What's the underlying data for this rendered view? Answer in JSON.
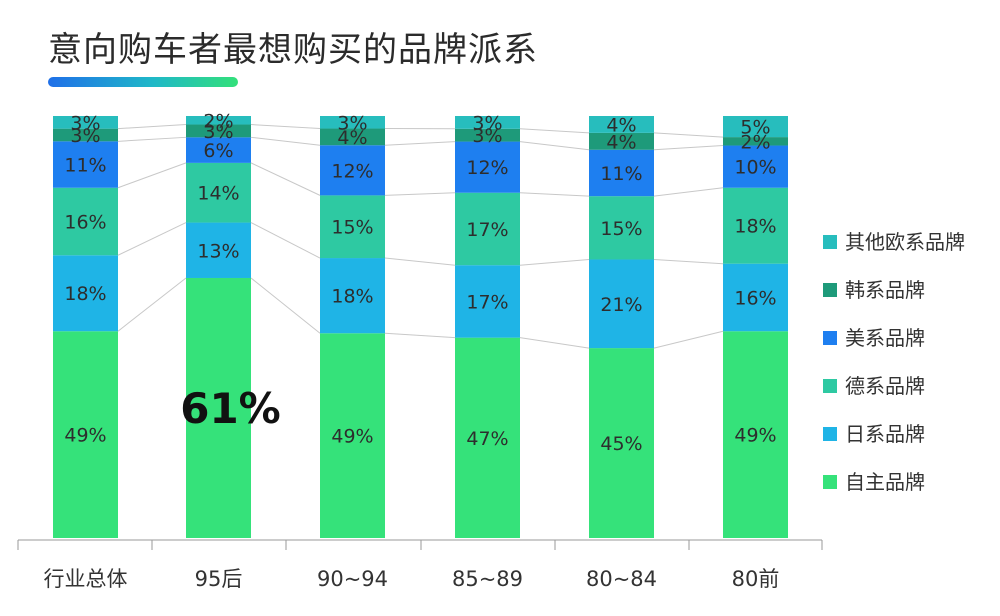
{
  "title": "意向购车者最想购买的品牌派系",
  "colors": {
    "自主品牌": "#35e27a",
    "日系品牌": "#1fb4e6",
    "德系品牌": "#2ec9a2",
    "美系品牌": "#1e7ff0",
    "韩系品牌": "#1e9a7a",
    "其他欧系品牌": "#27bdbd"
  },
  "chart_data": {
    "type": "bar",
    "stacked": true,
    "percent_stacked": true,
    "categories": [
      "行业总体",
      "95后",
      "90~94",
      "85~89",
      "80~84",
      "80前"
    ],
    "series": [
      {
        "name": "自主品牌",
        "values": [
          49,
          61,
          49,
          47,
          45,
          49
        ],
        "labels": [
          "49%",
          "61%",
          "49%",
          "47%",
          "45%",
          "49%"
        ]
      },
      {
        "name": "日系品牌",
        "values": [
          18,
          13,
          18,
          17,
          21,
          16
        ],
        "labels": [
          "18%",
          "13%",
          "18%",
          "17%",
          "21%",
          "16%"
        ]
      },
      {
        "name": "德系品牌",
        "values": [
          16,
          14,
          15,
          17,
          15,
          18
        ],
        "labels": [
          "16%",
          "14%",
          "15%",
          "17%",
          "15%",
          "18%"
        ]
      },
      {
        "name": "美系品牌",
        "values": [
          11,
          6,
          12,
          12,
          11,
          10
        ],
        "labels": [
          "11%",
          "6%",
          "12%",
          "12%",
          "11%",
          "10%"
        ]
      },
      {
        "name": "韩系品牌",
        "values": [
          3,
          3,
          4,
          3,
          4,
          2
        ],
        "labels": [
          "3%",
          "3%",
          "4%",
          "3%",
          "4%",
          "2%"
        ]
      },
      {
        "name": "其他欧系品牌",
        "values": [
          3,
          2,
          3,
          3,
          4,
          5
        ],
        "labels": [
          "3%",
          "2%",
          "3%",
          "3%",
          "4%",
          "5%"
        ]
      }
    ],
    "ylim": [
      0,
      100
    ],
    "highlight": {
      "category": "95后",
      "series": "自主品牌"
    },
    "legend_position": "right",
    "legend_order": [
      "其他欧系品牌",
      "韩系品牌",
      "美系品牌",
      "德系品牌",
      "日系品牌",
      "自主品牌"
    ],
    "connector_lines": true,
    "grid": false
  }
}
